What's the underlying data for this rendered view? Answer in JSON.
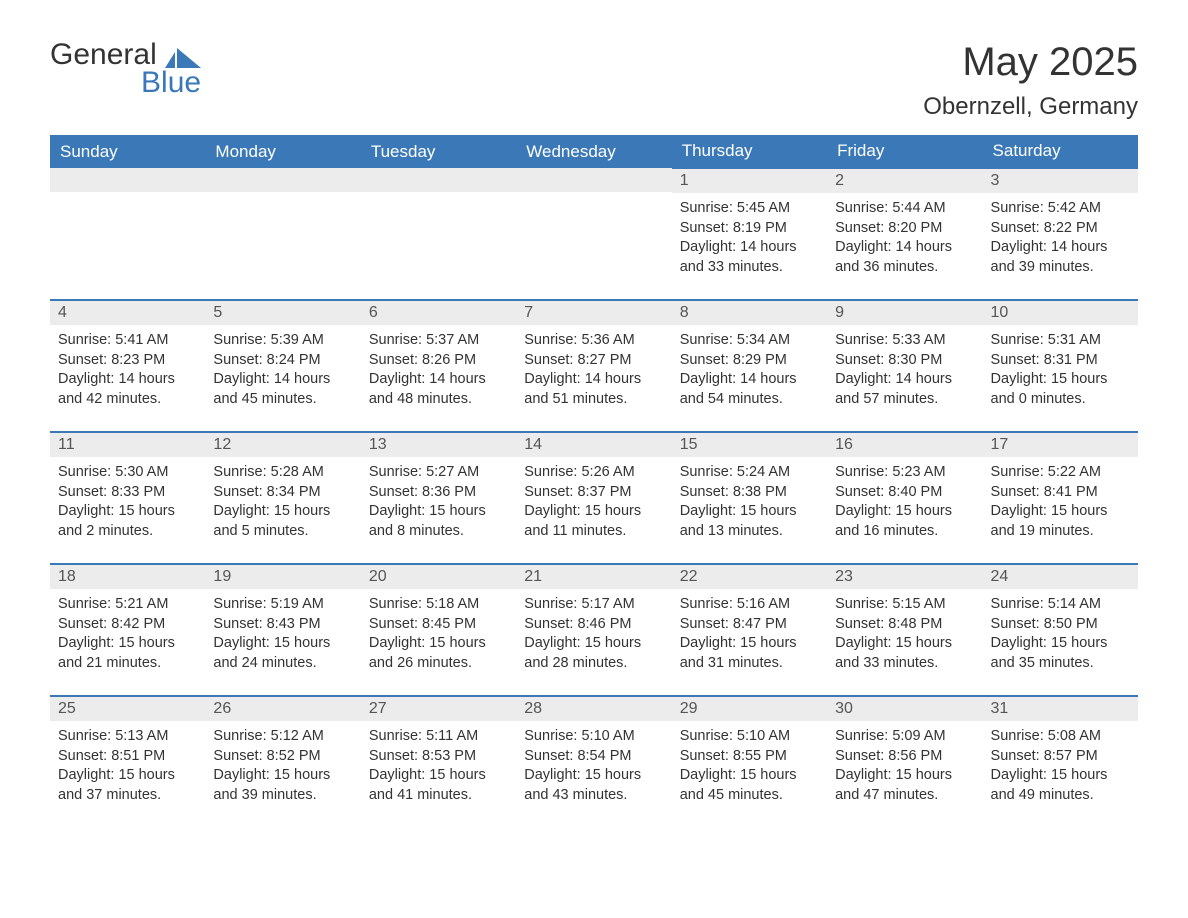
{
  "logo": {
    "word1": "General",
    "word2": "Blue"
  },
  "title": "May 2025",
  "location": "Obernzell, Germany",
  "colors": {
    "header_bg": "#3a78b8",
    "header_text": "#ffffff",
    "daynum_bg": "#ececec",
    "row_border": "#3a78b8",
    "text": "#333333",
    "logo_blue": "#3a78b8"
  },
  "weekdays": [
    "Sunday",
    "Monday",
    "Tuesday",
    "Wednesday",
    "Thursday",
    "Friday",
    "Saturday"
  ],
  "weeks": [
    [
      null,
      null,
      null,
      null,
      {
        "n": "1",
        "sr": "5:45 AM",
        "ss": "8:19 PM",
        "dl": "14 hours and 33 minutes."
      },
      {
        "n": "2",
        "sr": "5:44 AM",
        "ss": "8:20 PM",
        "dl": "14 hours and 36 minutes."
      },
      {
        "n": "3",
        "sr": "5:42 AM",
        "ss": "8:22 PM",
        "dl": "14 hours and 39 minutes."
      }
    ],
    [
      {
        "n": "4",
        "sr": "5:41 AM",
        "ss": "8:23 PM",
        "dl": "14 hours and 42 minutes."
      },
      {
        "n": "5",
        "sr": "5:39 AM",
        "ss": "8:24 PM",
        "dl": "14 hours and 45 minutes."
      },
      {
        "n": "6",
        "sr": "5:37 AM",
        "ss": "8:26 PM",
        "dl": "14 hours and 48 minutes."
      },
      {
        "n": "7",
        "sr": "5:36 AM",
        "ss": "8:27 PM",
        "dl": "14 hours and 51 minutes."
      },
      {
        "n": "8",
        "sr": "5:34 AM",
        "ss": "8:29 PM",
        "dl": "14 hours and 54 minutes."
      },
      {
        "n": "9",
        "sr": "5:33 AM",
        "ss": "8:30 PM",
        "dl": "14 hours and 57 minutes."
      },
      {
        "n": "10",
        "sr": "5:31 AM",
        "ss": "8:31 PM",
        "dl": "15 hours and 0 minutes."
      }
    ],
    [
      {
        "n": "11",
        "sr": "5:30 AM",
        "ss": "8:33 PM",
        "dl": "15 hours and 2 minutes."
      },
      {
        "n": "12",
        "sr": "5:28 AM",
        "ss": "8:34 PM",
        "dl": "15 hours and 5 minutes."
      },
      {
        "n": "13",
        "sr": "5:27 AM",
        "ss": "8:36 PM",
        "dl": "15 hours and 8 minutes."
      },
      {
        "n": "14",
        "sr": "5:26 AM",
        "ss": "8:37 PM",
        "dl": "15 hours and 11 minutes."
      },
      {
        "n": "15",
        "sr": "5:24 AM",
        "ss": "8:38 PM",
        "dl": "15 hours and 13 minutes."
      },
      {
        "n": "16",
        "sr": "5:23 AM",
        "ss": "8:40 PM",
        "dl": "15 hours and 16 minutes."
      },
      {
        "n": "17",
        "sr": "5:22 AM",
        "ss": "8:41 PM",
        "dl": "15 hours and 19 minutes."
      }
    ],
    [
      {
        "n": "18",
        "sr": "5:21 AM",
        "ss": "8:42 PM",
        "dl": "15 hours and 21 minutes."
      },
      {
        "n": "19",
        "sr": "5:19 AM",
        "ss": "8:43 PM",
        "dl": "15 hours and 24 minutes."
      },
      {
        "n": "20",
        "sr": "5:18 AM",
        "ss": "8:45 PM",
        "dl": "15 hours and 26 minutes."
      },
      {
        "n": "21",
        "sr": "5:17 AM",
        "ss": "8:46 PM",
        "dl": "15 hours and 28 minutes."
      },
      {
        "n": "22",
        "sr": "5:16 AM",
        "ss": "8:47 PM",
        "dl": "15 hours and 31 minutes."
      },
      {
        "n": "23",
        "sr": "5:15 AM",
        "ss": "8:48 PM",
        "dl": "15 hours and 33 minutes."
      },
      {
        "n": "24",
        "sr": "5:14 AM",
        "ss": "8:50 PM",
        "dl": "15 hours and 35 minutes."
      }
    ],
    [
      {
        "n": "25",
        "sr": "5:13 AM",
        "ss": "8:51 PM",
        "dl": "15 hours and 37 minutes."
      },
      {
        "n": "26",
        "sr": "5:12 AM",
        "ss": "8:52 PM",
        "dl": "15 hours and 39 minutes."
      },
      {
        "n": "27",
        "sr": "5:11 AM",
        "ss": "8:53 PM",
        "dl": "15 hours and 41 minutes."
      },
      {
        "n": "28",
        "sr": "5:10 AM",
        "ss": "8:54 PM",
        "dl": "15 hours and 43 minutes."
      },
      {
        "n": "29",
        "sr": "5:10 AM",
        "ss": "8:55 PM",
        "dl": "15 hours and 45 minutes."
      },
      {
        "n": "30",
        "sr": "5:09 AM",
        "ss": "8:56 PM",
        "dl": "15 hours and 47 minutes."
      },
      {
        "n": "31",
        "sr": "5:08 AM",
        "ss": "8:57 PM",
        "dl": "15 hours and 49 minutes."
      }
    ]
  ],
  "labels": {
    "sunrise": "Sunrise: ",
    "sunset": "Sunset: ",
    "daylight": "Daylight: "
  }
}
